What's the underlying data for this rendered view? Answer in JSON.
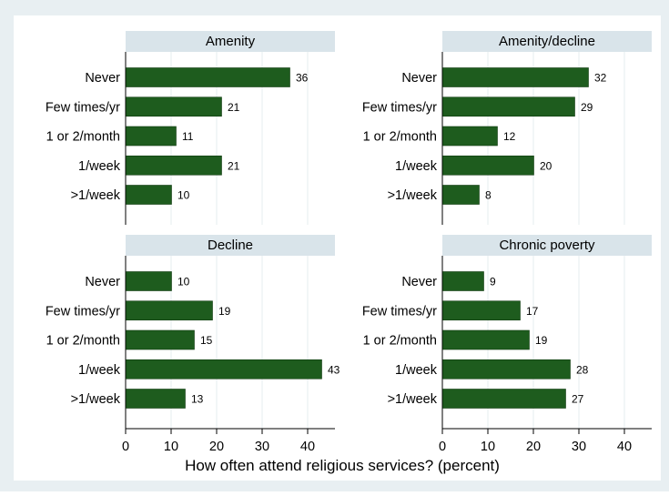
{
  "chart_data": {
    "type": "bar",
    "orientation": "horizontal",
    "xlabel": "How often attend religious services?  (percent)",
    "xlim": [
      0,
      46
    ],
    "xticks": [
      0,
      10,
      20,
      30,
      40
    ],
    "categories": [
      "Never",
      "Few times/yr",
      "1 or 2/month",
      "1/week",
      ">1/week"
    ],
    "grid": true,
    "colors": {
      "bar": "#1e5c1e",
      "bar_stroke": "#0f3a0f",
      "panel_header": "#d9e4ea",
      "outer_background": "#e8eff2",
      "plot_background": "#ffffff",
      "grid": "#e6ecef"
    },
    "panels": [
      {
        "title": "Amenity",
        "values": [
          36,
          21,
          11,
          21,
          10
        ],
        "labels": [
          "36",
          "21",
          "11",
          "21",
          "10"
        ]
      },
      {
        "title": "Amenity/decline",
        "values": [
          32,
          29,
          12,
          20,
          8
        ],
        "labels": [
          "32",
          "29",
          "12",
          "20",
          "8"
        ]
      },
      {
        "title": "Decline",
        "values": [
          10,
          19,
          15,
          43,
          13
        ],
        "labels": [
          "10",
          "19",
          "15",
          "43",
          "13"
        ]
      },
      {
        "title": "Chronic poverty",
        "values": [
          9,
          17,
          19,
          28,
          27
        ],
        "labels": [
          "9",
          "17",
          "19",
          "28",
          "27"
        ]
      }
    ]
  }
}
